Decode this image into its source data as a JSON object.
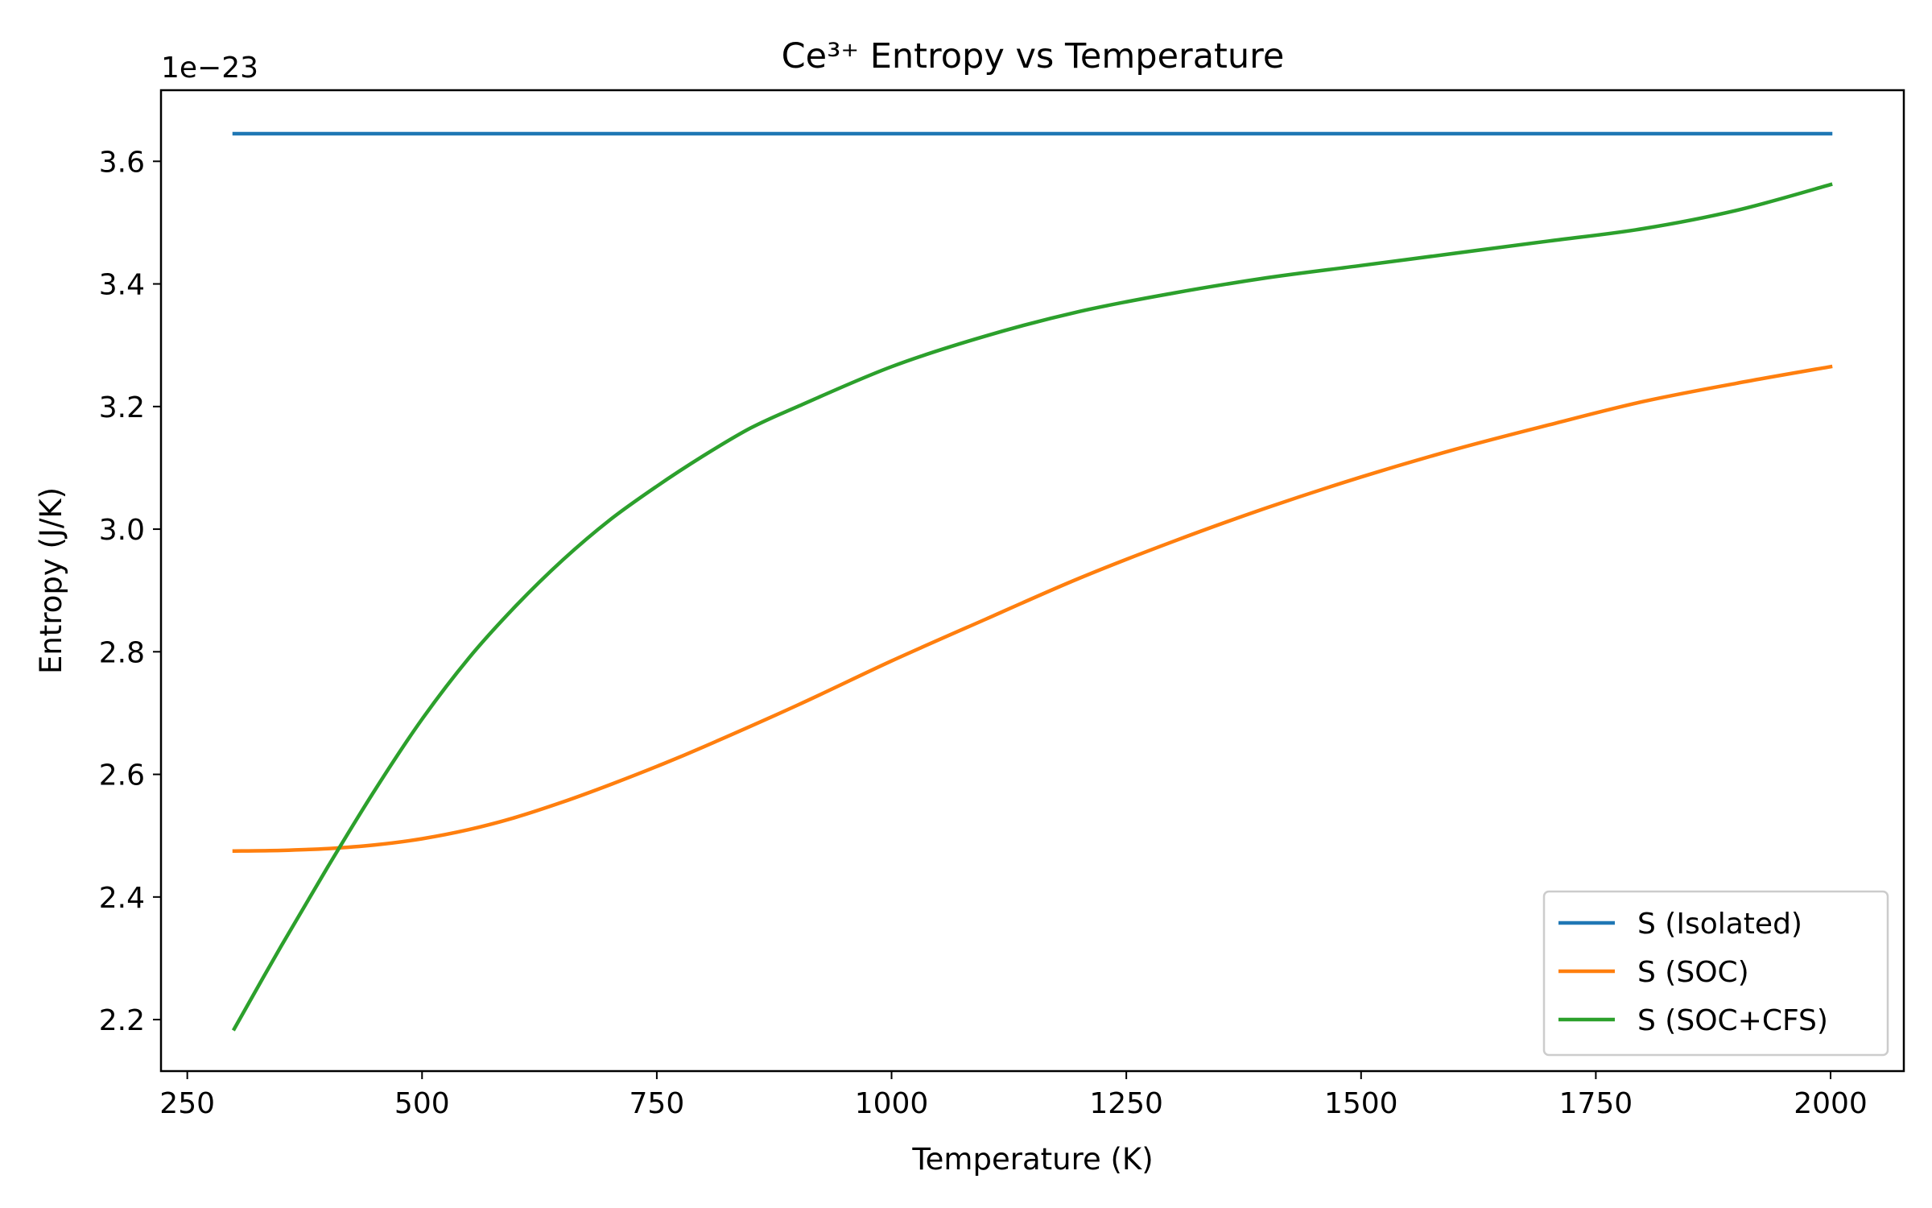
{
  "chart_data": {
    "type": "line",
    "title": "Ce³⁺ Entropy vs Temperature",
    "xlabel": "Temperature (K)",
    "ylabel": "Entropy (J/K)",
    "offset_label": "1e−23",
    "xlim": [
      222,
      2078
    ],
    "ylim": [
      2.116,
      3.716
    ],
    "xticks": [
      250,
      500,
      750,
      1000,
      1250,
      1500,
      1750,
      2000
    ],
    "xtick_labels": [
      "250",
      "500",
      "750",
      "1000",
      "1250",
      "1500",
      "1750",
      "2000"
    ],
    "yticks": [
      2.2,
      2.4,
      2.6,
      2.8,
      3.0,
      3.2,
      3.4,
      3.6
    ],
    "ytick_labels": [
      "2.2",
      "2.4",
      "2.6",
      "2.8",
      "3.0",
      "3.2",
      "3.4",
      "3.6"
    ],
    "grid": false,
    "legend_position": "lower-right",
    "series": [
      {
        "name": "S (Isolated)",
        "color": "#1f77b4",
        "x": [
          300,
          2000
        ],
        "y": [
          3.645,
          3.645
        ]
      },
      {
        "name": "S (SOC)",
        "color": "#ff7f0e",
        "x": [
          300,
          350,
          400,
          450,
          500,
          550,
          600,
          650,
          700,
          750,
          800,
          900,
          1000,
          1100,
          1200,
          1300,
          1400,
          1500,
          1600,
          1700,
          1800,
          1900,
          2000
        ],
        "y": [
          2.475,
          2.476,
          2.479,
          2.485,
          2.495,
          2.51,
          2.53,
          2.555,
          2.583,
          2.613,
          2.645,
          2.713,
          2.785,
          2.853,
          2.92,
          2.98,
          3.035,
          3.085,
          3.13,
          3.17,
          3.208,
          3.238,
          3.265
        ]
      },
      {
        "name": "S (SOC+CFS)",
        "color": "#2ca02c",
        "x": [
          300,
          350,
          400,
          450,
          500,
          550,
          600,
          650,
          700,
          750,
          800,
          850,
          900,
          1000,
          1100,
          1200,
          1300,
          1400,
          1500,
          1600,
          1700,
          1800,
          1900,
          2000
        ],
        "y": [
          2.185,
          2.32,
          2.45,
          2.575,
          2.69,
          2.79,
          2.875,
          2.95,
          3.015,
          3.07,
          3.12,
          3.165,
          3.2,
          3.265,
          3.315,
          3.355,
          3.385,
          3.41,
          3.43,
          3.45,
          3.47,
          3.49,
          3.52,
          3.562
        ]
      }
    ]
  }
}
